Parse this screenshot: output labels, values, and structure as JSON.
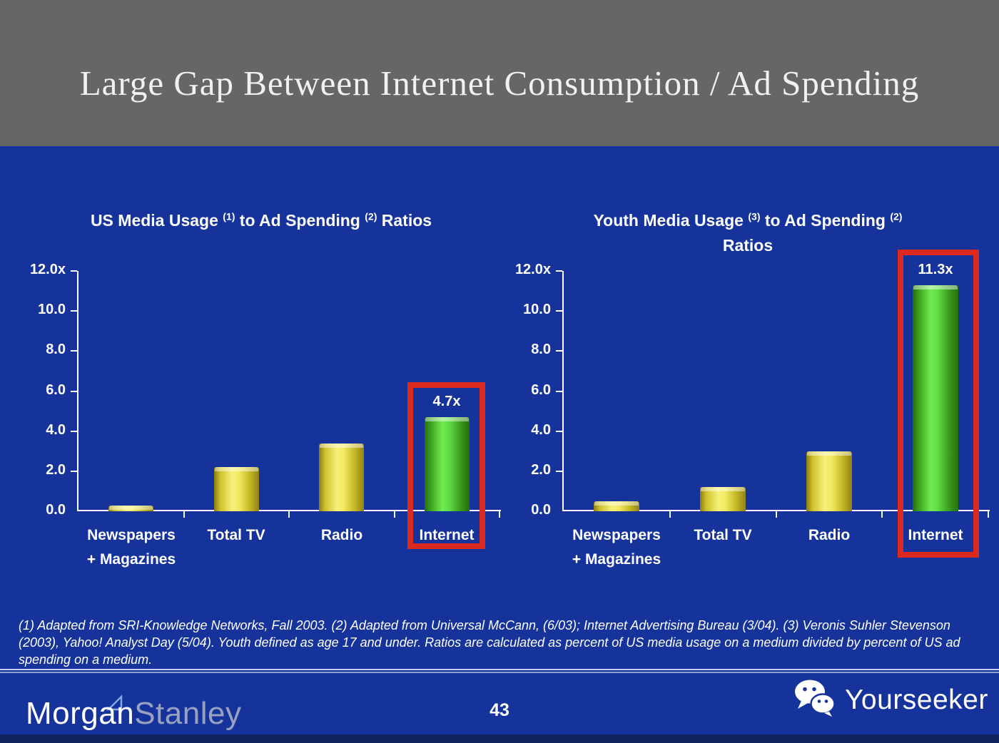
{
  "slide": {
    "title": "Large Gap Between Internet Consumption / Ad Spending",
    "page_number": "43",
    "footnote": "(1) Adapted from SRI-Knowledge Networks, Fall 2003.  (2) Adapted from Universal McCann, (6/03); Internet Advertising Bureau (3/04). (3) Veronis Suhler Stevenson (2003), Yahoo! Analyst Day (5/04).  Youth defined as age 17 and under.  Ratios are calculated as percent of US media usage on a medium divided by percent of US ad spending on a medium.",
    "brand": {
      "part1": "Morgan",
      "part2": "Stanley"
    },
    "watermark": {
      "icon": "wechat-icon",
      "label": "Yourseeker"
    }
  },
  "colors": {
    "background_blue": "#16339c",
    "header_gray": "#666666",
    "highlight_red": "#dc2a20",
    "bar_yellow": "#f2ea62",
    "bar_green": "#60db44",
    "axis_white": "#ffffff",
    "stanley_gray": "#98a1bf"
  },
  "chart_data": [
    {
      "type": "bar",
      "name": "us-media-usage-chart",
      "title": "US Media Usage (1) to Ad Spending (2) Ratios",
      "title_lines": [
        [
          {
            "t": "US Media Usage "
          },
          {
            "sup": "(1)"
          },
          {
            "t": " to Ad Spending "
          },
          {
            "sup": "(2)"
          },
          {
            "t": " Ratios"
          }
        ]
      ],
      "categories": [
        "Newspapers + Magazines",
        "Total TV",
        "Radio",
        "Internet"
      ],
      "category_label_lines": [
        [
          "Newspapers",
          "+ Magazines"
        ],
        [
          "Total TV"
        ],
        [
          "Radio"
        ],
        [
          "Internet"
        ]
      ],
      "values": [
        0.3,
        2.2,
        3.4,
        4.7
      ],
      "bar_styles": [
        "yellow",
        "yellow",
        "yellow",
        "green"
      ],
      "highlight": {
        "index": 3,
        "value_label": "4.7x"
      },
      "xlabel": "",
      "ylabel": "",
      "ylim": [
        0,
        12
      ],
      "y_ticks": [
        {
          "v": 12,
          "label": "12.0x"
        },
        {
          "v": 10,
          "label": "10.0"
        },
        {
          "v": 8,
          "label": "8.0"
        },
        {
          "v": 6,
          "label": "6.0"
        },
        {
          "v": 4,
          "label": "4.0"
        },
        {
          "v": 2,
          "label": "2.0"
        },
        {
          "v": 0,
          "label": "0.0"
        }
      ],
      "grid": false,
      "legend": false
    },
    {
      "type": "bar",
      "name": "youth-media-usage-chart",
      "title": "Youth Media Usage (3) to Ad Spending (2) Ratios",
      "title_lines": [
        [
          {
            "t": "Youth Media Usage "
          },
          {
            "sup": "(3)"
          },
          {
            "t": " to Ad Spending "
          },
          {
            "sup": "(2)"
          }
        ],
        [
          {
            "t": "Ratios"
          }
        ]
      ],
      "categories": [
        "Newspapers + Magazines",
        "Total TV",
        "Radio",
        "Internet"
      ],
      "category_label_lines": [
        [
          "Newspapers",
          "+ Magazines"
        ],
        [
          "Total TV"
        ],
        [
          "Radio"
        ],
        [
          "Internet"
        ]
      ],
      "values": [
        0.5,
        1.2,
        3.0,
        11.3
      ],
      "bar_styles": [
        "yellow",
        "yellow",
        "yellow",
        "green"
      ],
      "highlight": {
        "index": 3,
        "value_label": "11.3x"
      },
      "xlabel": "",
      "ylabel": "",
      "ylim": [
        0,
        12
      ],
      "y_ticks": [
        {
          "v": 12,
          "label": "12.0x"
        },
        {
          "v": 10,
          "label": "10.0"
        },
        {
          "v": 8,
          "label": "8.0"
        },
        {
          "v": 6,
          "label": "6.0"
        },
        {
          "v": 4,
          "label": "4.0"
        },
        {
          "v": 2,
          "label": "2.0"
        },
        {
          "v": 0,
          "label": "0.0"
        }
      ],
      "grid": false,
      "legend": false
    }
  ]
}
